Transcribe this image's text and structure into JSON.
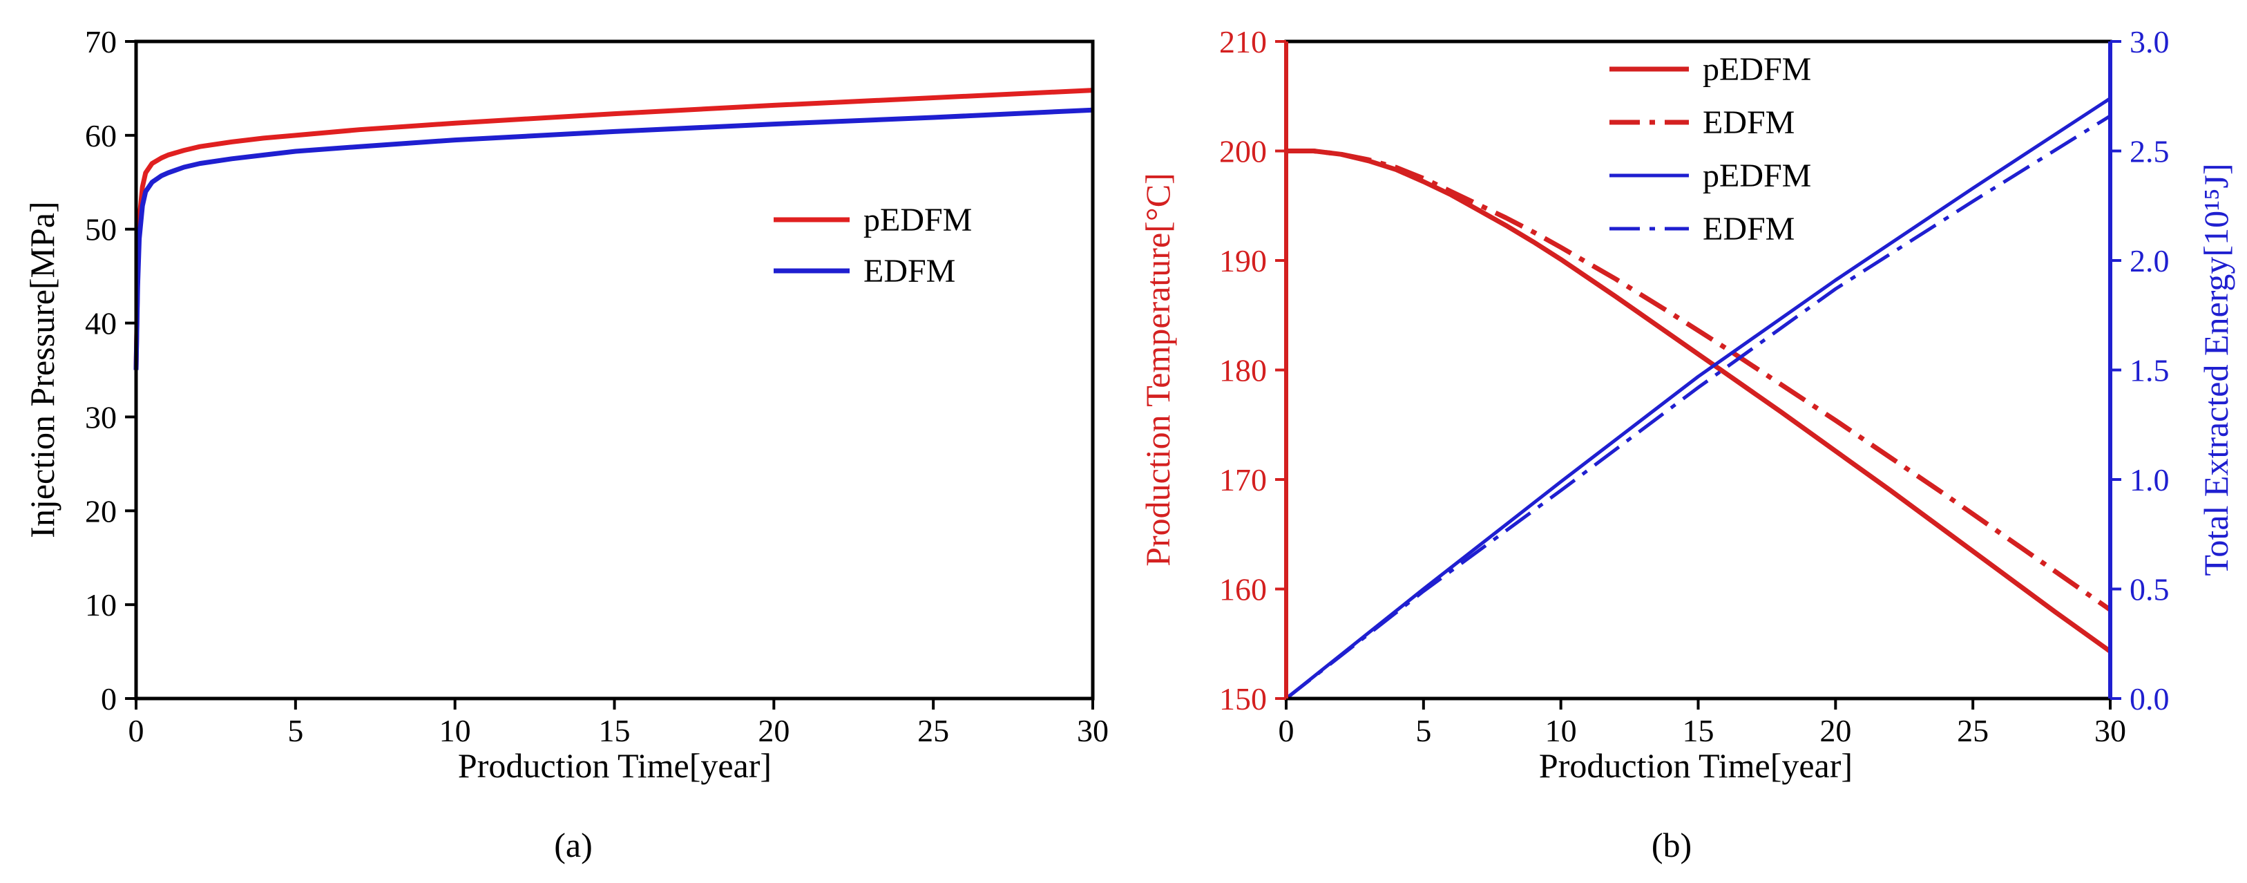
{
  "chart_data": [
    {
      "type": "line",
      "caption": "(a)",
      "xlabel": "Production Time[year]",
      "ylabel": "Injection Pressure[MPa]",
      "xlim": [
        0,
        30
      ],
      "ylim": [
        0,
        70
      ],
      "xticks": [
        0,
        5,
        10,
        15,
        20,
        25,
        30
      ],
      "yticks": [
        0,
        10,
        20,
        30,
        40,
        50,
        60,
        70
      ],
      "legend_position": "center-right",
      "colors": {
        "red": "#e02020",
        "blue": "#1f1fd0"
      },
      "series": [
        {
          "name": "pEDFM",
          "color": "#e02020",
          "style": "solid",
          "x": [
            0,
            0.05,
            0.1,
            0.2,
            0.3,
            0.5,
            0.8,
            1,
            1.5,
            2,
            3,
            4,
            5,
            7,
            10,
            15,
            20,
            25,
            30
          ],
          "y": [
            35,
            45,
            51,
            54.5,
            56,
            57,
            57.6,
            57.9,
            58.4,
            58.8,
            59.3,
            59.7,
            60.0,
            60.6,
            61.3,
            62.3,
            63.2,
            64.0,
            64.8
          ]
        },
        {
          "name": "EDFM",
          "color": "#1f1fd0",
          "style": "solid",
          "x": [
            0,
            0.05,
            0.1,
            0.2,
            0.3,
            0.5,
            0.8,
            1,
            1.5,
            2,
            3,
            4,
            5,
            7,
            10,
            15,
            20,
            25,
            30
          ],
          "y": [
            35,
            44,
            49,
            52.5,
            54,
            55,
            55.7,
            56.0,
            56.6,
            57.0,
            57.5,
            57.9,
            58.3,
            58.8,
            59.5,
            60.4,
            61.2,
            61.9,
            62.7
          ]
        }
      ]
    },
    {
      "type": "line",
      "caption": "(b)",
      "xlabel": "Production Time[year]",
      "ylabel_left": "Production Temperature[°C]",
      "ylabel_right": "Total Extracted Energy[10¹⁵J]",
      "xlim": [
        0,
        30
      ],
      "ylim_left": [
        150,
        210
      ],
      "ylim_right": [
        0,
        3.0
      ],
      "xticks": [
        0,
        5,
        10,
        15,
        20,
        25,
        30
      ],
      "yticks_left": [
        150,
        160,
        170,
        180,
        190,
        200,
        210
      ],
      "yticks_right": [
        "0.0",
        "0.5",
        "1.0",
        "1.5",
        "2.0",
        "2.5",
        "3.0"
      ],
      "legend_position": "top-center",
      "colors": {
        "red": "#d42020",
        "blue": "#1f1fd0"
      },
      "series": [
        {
          "name": "pEDFM",
          "axis": "left",
          "color": "#d42020",
          "style": "solid",
          "x": [
            0,
            1,
            2,
            3,
            4,
            5,
            6,
            7,
            8,
            9,
            10,
            12,
            14,
            16,
            18,
            20,
            22,
            24,
            26,
            28,
            30
          ],
          "y": [
            200,
            200,
            199.7,
            199.1,
            198.3,
            197.2,
            196.0,
            194.6,
            193.2,
            191.7,
            190.1,
            186.7,
            183.2,
            179.7,
            176.2,
            172.6,
            169.0,
            165.3,
            161.6,
            157.9,
            154.3
          ]
        },
        {
          "name": "EDFM",
          "axis": "left",
          "color": "#d42020",
          "style": "dashdot",
          "x": [
            0,
            1,
            2,
            3,
            4,
            5,
            6,
            7,
            8,
            9,
            10,
            12,
            14,
            16,
            18,
            20,
            22,
            24,
            26,
            28,
            30
          ],
          "y": [
            200,
            200,
            199.7,
            199.2,
            198.5,
            197.5,
            196.3,
            195.1,
            193.9,
            192.6,
            191.2,
            188.3,
            185.2,
            182.0,
            178.7,
            175.4,
            172.0,
            168.6,
            165.1,
            161.6,
            158.1
          ]
        },
        {
          "name": "pEDFM",
          "axis": "right",
          "color": "#1f1fd0",
          "style": "solid",
          "x": [
            0,
            5,
            10,
            15,
            20,
            25,
            30
          ],
          "y": [
            0.0,
            0.5,
            0.99,
            1.47,
            1.91,
            2.33,
            2.74
          ]
        },
        {
          "name": "EDFM",
          "axis": "right",
          "color": "#1f1fd0",
          "style": "dashdot",
          "x": [
            0,
            5,
            10,
            15,
            20,
            25,
            30
          ],
          "y": [
            0.0,
            0.49,
            0.95,
            1.42,
            1.87,
            2.27,
            2.66
          ]
        }
      ]
    }
  ]
}
